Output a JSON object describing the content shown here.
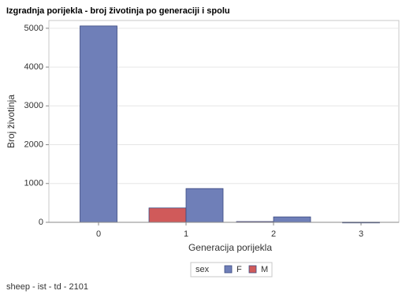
{
  "chart_data": {
    "type": "bar",
    "title": "Izgradnja porijekla - broj životinja po generaciji i spolu",
    "x_label": "Generacija porijekla",
    "y_label": "Broj životinja",
    "categories": [
      "0",
      "1",
      "2",
      "3"
    ],
    "series": [
      {
        "name": "F",
        "color": "#6f7fb8",
        "values": [
          5060,
          870,
          140,
          5
        ]
      },
      {
        "name": "M",
        "color": "#d05a5a",
        "values": [
          null,
          370,
          20,
          null
        ]
      }
    ],
    "draw_order": [
      "M",
      "F"
    ],
    "legend_title": "sex",
    "ylim": [
      0,
      5200
    ],
    "yticks": [
      0,
      1000,
      2000,
      3000,
      4000,
      5000
    ],
    "grid": true,
    "footnote": "sheep - ist - td - 2101"
  }
}
